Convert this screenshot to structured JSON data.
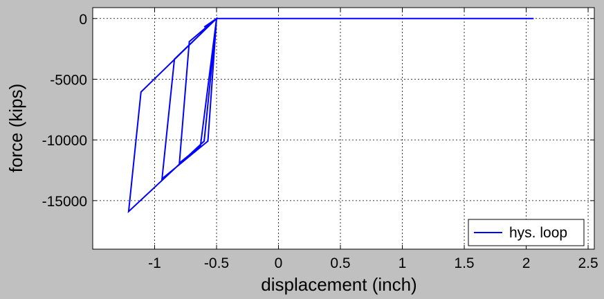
{
  "chart_data": {
    "type": "line",
    "xlabel": "displacement (inch)",
    "ylabel": "force (kips)",
    "xlim": [
      -1.5,
      2.55
    ],
    "ylim": [
      -19000,
      900
    ],
    "xticks": [
      -1,
      -0.5,
      0,
      0.5,
      1,
      1.5,
      2,
      2.5
    ],
    "xtick_labels": [
      "-1",
      "-0.5",
      "0",
      "0.5",
      "1",
      "1.5",
      "2",
      "2.5"
    ],
    "yticks": [
      0,
      -5000,
      -10000,
      -15000
    ],
    "ytick_labels": [
      "0",
      "-5000",
      "-10000",
      "-15000"
    ],
    "grid": true,
    "legend_position": "bottom-right",
    "colors": {
      "series": "#0000ff",
      "background": "#c0c0c0",
      "plot": "#ffffff"
    },
    "series": [
      {
        "name": "hys. loop",
        "x": [
          -0.5,
          -1.11,
          -1.21,
          -0.6,
          -0.5,
          -0.84,
          -0.94,
          -0.57,
          -0.5,
          -0.72,
          -0.8,
          -0.63,
          -0.5,
          -0.6,
          -0.5,
          2.06
        ],
        "y": [
          0,
          -6050,
          -15900,
          -10100,
          0,
          -3350,
          -13200,
          -10100,
          0,
          -1900,
          -11900,
          -10500,
          0,
          -700,
          0,
          0
        ]
      }
    ]
  }
}
